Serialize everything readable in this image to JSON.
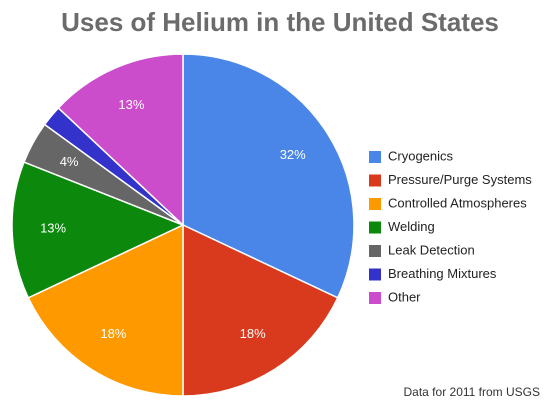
{
  "chart_data": {
    "type": "pie",
    "title": "Uses of Helium in the United States",
    "categories": [
      "Cryogenics",
      "Pressure/Purge Systems",
      "Controlled Atmospheres",
      "Welding",
      "Leak Detection",
      "Breathing Mixtures",
      "Other"
    ],
    "values": [
      32,
      18,
      18,
      13,
      4,
      2,
      13
    ],
    "value_labels": [
      "32%",
      "18%",
      "18%",
      "13%",
      "4%",
      null,
      "13%"
    ],
    "colors": [
      "#4a86e8",
      "#d9391c",
      "#ff9900",
      "#0c880c",
      "#666666",
      "#3333cc",
      "#cc4dcc"
    ],
    "legend": "right",
    "note": "Data for 2011 from USGS"
  }
}
